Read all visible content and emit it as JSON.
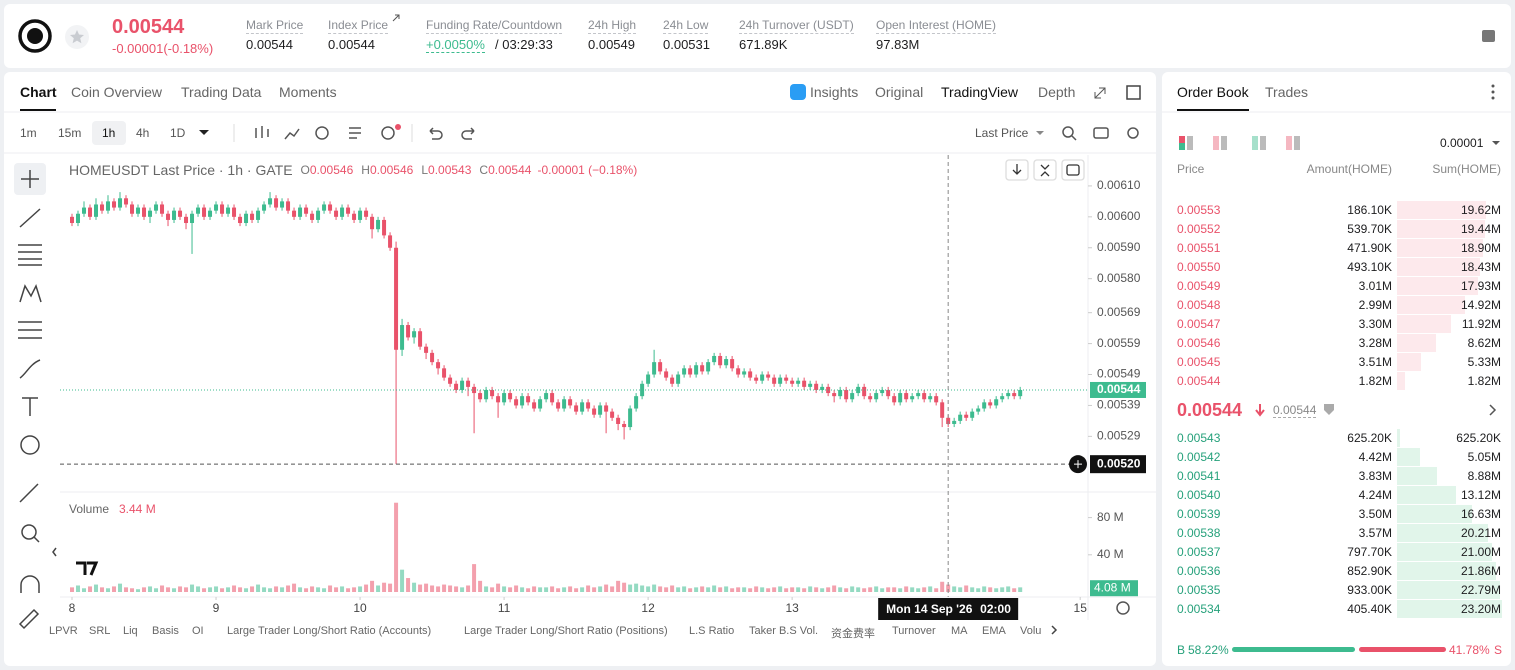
{
  "header": {
    "price": "0.00544",
    "change": "-0.00001(-0.18%)",
    "stats": [
      {
        "label": "Mark Price",
        "value": "0.00544"
      },
      {
        "label": "Index Price",
        "value": "0.00544"
      },
      {
        "label": "Funding Rate/Countdown",
        "value": "+0.0050%",
        "countdown": "/ 03:29:33"
      },
      {
        "label": "24h High",
        "value": "0.00549"
      },
      {
        "label": "24h Low",
        "value": "0.00531"
      },
      {
        "label": "24h Turnover (USDT)",
        "value": "671.89K"
      },
      {
        "label": "Open Interest (HOME)",
        "value": "97.83M"
      }
    ]
  },
  "tabs": {
    "left": [
      "Chart",
      "Coin Overview",
      "Trading Data",
      "Moments"
    ],
    "right": [
      "Insights",
      "Original",
      "TradingView",
      "Depth"
    ]
  },
  "toolbar": {
    "intervals": [
      "1m",
      "15m",
      "1h",
      "4h",
      "1D"
    ],
    "price_source": "Last Price"
  },
  "indicators": [
    "LPVR",
    "SRL",
    "Liq",
    "Basis",
    "OI",
    "Large Trader Long/Short Ratio (Accounts)",
    "Large Trader Long/Short Ratio (Positions)",
    "L.S Ratio",
    "Taker B.S Vol.",
    "资金费率",
    "Turnover",
    "MA",
    "EMA",
    "Volu"
  ],
  "chart_data": {
    "type": "candlestick",
    "symbol_line": "HOMEUSDT Last Price · 1h · GATE",
    "ohlc_legend": [
      {
        "key": "O",
        "value": "0.00546"
      },
      {
        "key": "H",
        "value": "0.00546"
      },
      {
        "key": "L",
        "value": "0.00543"
      },
      {
        "key": "C",
        "value": "0.00544"
      }
    ],
    "legend_change": "-0.00001 (−0.18%)",
    "up_color": "#3dbb8f",
    "down_color": "#e9526a",
    "xlim": [
      -2,
      169.3
    ],
    "xticks": [
      {
        "value": 0,
        "label": "8"
      },
      {
        "value": 24,
        "label": "9"
      },
      {
        "value": 48,
        "label": "10"
      },
      {
        "value": 72,
        "label": "11"
      },
      {
        "value": 96,
        "label": "12"
      },
      {
        "value": 120,
        "label": "13"
      },
      {
        "value": 168,
        "label": "15"
      }
    ],
    "ylim": [
      0.00511,
      0.0062
    ],
    "yticks": [
      {
        "value": 0.0061,
        "label": "0.00610"
      },
      {
        "value": 0.006,
        "label": "0.00600"
      },
      {
        "value": 0.0059,
        "label": "0.00590"
      },
      {
        "value": 0.0058,
        "label": "0.00580"
      },
      0.00569,
      0.00559,
      0.00549,
      0.00539,
      0.00529
    ],
    "last_price": 0.00544,
    "crosshair": {
      "x": 146,
      "price": {
        "value": 0.0052,
        "label": "0.00520"
      },
      "date_label": "Mon 14 Sep '26",
      "time_label": "02:00"
    },
    "volume_title": "Volume",
    "volume_legend": "3.44 M",
    "volume_ylim": [
      0,
      100
    ],
    "volume_yticks": [
      {
        "value": 80,
        "label": "80 M"
      },
      {
        "value": 40,
        "label": "40 M"
      }
    ],
    "volume_last": {
      "value": 4.08,
      "label": "4.08 M"
    },
    "x": [
      0,
      1,
      2,
      3,
      4,
      5,
      6,
      7,
      8,
      9,
      10,
      11,
      12,
      13,
      14,
      15,
      16,
      17,
      18,
      19,
      20,
      21,
      22,
      23,
      24,
      25,
      26,
      27,
      28,
      29,
      30,
      31,
      32,
      33,
      34,
      35,
      36,
      37,
      38,
      39,
      40,
      41,
      42,
      43,
      44,
      45,
      46,
      47,
      48,
      49,
      50,
      51,
      52,
      53,
      54,
      55,
      56,
      57,
      58,
      59,
      60,
      61,
      62,
      63,
      64,
      65,
      66,
      67,
      68,
      69,
      70,
      71,
      72,
      73,
      74,
      75,
      76,
      77,
      78,
      79,
      80,
      81,
      82,
      83,
      84,
      85,
      86,
      87,
      88,
      89,
      90,
      91,
      92,
      93,
      94,
      95,
      96,
      97,
      98,
      99,
      100,
      101,
      102,
      103,
      104,
      105,
      106,
      107,
      108,
      109,
      110,
      111,
      112,
      113,
      114,
      115,
      116,
      117,
      118,
      119,
      120,
      121,
      122,
      123,
      124,
      125,
      126,
      127,
      128,
      129,
      130,
      131,
      132,
      133,
      134,
      135,
      136,
      137,
      138,
      139,
      140,
      141,
      142,
      143,
      144,
      145,
      146,
      147,
      148,
      149,
      150,
      151,
      152,
      153,
      154,
      155,
      156,
      157,
      158
    ],
    "open": [
      0.006,
      0.00598,
      0.00601,
      0.00603,
      0.006,
      0.00604,
      0.00602,
      0.00605,
      0.00603,
      0.00606,
      0.00604,
      0.00601,
      0.00603,
      0.006,
      0.00602,
      0.00604,
      0.00601,
      0.00599,
      0.00602,
      0.006,
      0.00598,
      0.00601,
      0.00603,
      0.006,
      0.00602,
      0.00604,
      0.00601,
      0.00603,
      0.006,
      0.00598,
      0.00601,
      0.00599,
      0.00602,
      0.00604,
      0.00606,
      0.00603,
      0.00605,
      0.00602,
      0.006,
      0.00603,
      0.00601,
      0.00599,
      0.00602,
      0.00604,
      0.00602,
      0.006,
      0.00603,
      0.00601,
      0.00599,
      0.00602,
      0.006,
      0.00596,
      0.00599,
      0.00594,
      0.0059,
      0.00557,
      0.00565,
      0.00561,
      0.00563,
      0.00558,
      0.00556,
      0.00553,
      0.00551,
      0.00548,
      0.00546,
      0.00544,
      0.00547,
      0.00545,
      0.00543,
      0.00541,
      0.00544,
      0.00542,
      0.0054,
      0.00543,
      0.00541,
      0.00539,
      0.00542,
      0.0054,
      0.00538,
      0.00541,
      0.00543,
      0.0054,
      0.00538,
      0.00541,
      0.00539,
      0.00537,
      0.0054,
      0.00538,
      0.00536,
      0.00539,
      0.00537,
      0.00535,
      0.00533,
      0.00532,
      0.00538,
      0.00542,
      0.00546,
      0.00549,
      0.00553,
      0.0055,
      0.00548,
      0.00546,
      0.00549,
      0.00551,
      0.00549,
      0.00552,
      0.0055,
      0.00553,
      0.00555,
      0.00552,
      0.00554,
      0.00551,
      0.00549,
      0.0055,
      0.00548,
      0.00547,
      0.00549,
      0.00548,
      0.00546,
      0.00548,
      0.00547,
      0.00546,
      0.00547,
      0.00545,
      0.00546,
      0.00544,
      0.00545,
      0.00543,
      0.00542,
      0.00544,
      0.00541,
      0.00543,
      0.00545,
      0.00542,
      0.00541,
      0.00543,
      0.00544,
      0.00542,
      0.0054,
      0.00543,
      0.00541,
      0.00542,
      0.00543,
      0.00541,
      0.00542,
      0.0054,
      0.00535,
      0.00533,
      0.00534,
      0.00536,
      0.00535,
      0.00537,
      0.00538,
      0.0054,
      0.00539,
      0.00541,
      0.00542,
      0.00543,
      0.00542
    ],
    "high": [
      0.00601,
      0.00602,
      0.00605,
      0.00604,
      0.00606,
      0.00605,
      0.00607,
      0.00606,
      0.00608,
      0.00607,
      0.00605,
      0.00604,
      0.00604,
      0.00603,
      0.00605,
      0.00605,
      0.00602,
      0.00603,
      0.00603,
      0.00601,
      0.00602,
      0.00604,
      0.00604,
      0.00603,
      0.00605,
      0.00605,
      0.00604,
      0.00604,
      0.00601,
      0.00602,
      0.00602,
      0.00603,
      0.00605,
      0.00608,
      0.00607,
      0.00606,
      0.00606,
      0.00603,
      0.00604,
      0.00604,
      0.00602,
      0.00603,
      0.00605,
      0.00605,
      0.00603,
      0.00604,
      0.00604,
      0.00602,
      0.00603,
      0.00603,
      0.00601,
      0.006,
      0.006,
      0.00595,
      0.00592,
      0.00567,
      0.00566,
      0.00564,
      0.00564,
      0.00559,
      0.00557,
      0.00554,
      0.00552,
      0.00549,
      0.00547,
      0.00548,
      0.00548,
      0.00546,
      0.00544,
      0.00545,
      0.00545,
      0.00543,
      0.00544,
      0.00544,
      0.00542,
      0.00543,
      0.00543,
      0.00541,
      0.00542,
      0.00544,
      0.00544,
      0.00541,
      0.00542,
      0.00542,
      0.0054,
      0.00541,
      0.00541,
      0.00539,
      0.0054,
      0.0054,
      0.00538,
      0.00536,
      0.00534,
      0.00539,
      0.00543,
      0.00547,
      0.0055,
      0.00557,
      0.00554,
      0.00551,
      0.00549,
      0.0055,
      0.00552,
      0.00552,
      0.00553,
      0.00553,
      0.00554,
      0.00556,
      0.00556,
      0.00555,
      0.00555,
      0.00552,
      0.00551,
      0.00551,
      0.00549,
      0.0055,
      0.0055,
      0.00549,
      0.00549,
      0.00549,
      0.00548,
      0.00548,
      0.00548,
      0.00547,
      0.00547,
      0.00546,
      0.00546,
      0.00544,
      0.00545,
      0.00545,
      0.00544,
      0.00546,
      0.00546,
      0.00543,
      0.00544,
      0.00545,
      0.00545,
      0.00543,
      0.00544,
      0.00544,
      0.00543,
      0.00544,
      0.00544,
      0.00543,
      0.00543,
      0.00541,
      0.00536,
      0.00535,
      0.00537,
      0.00537,
      0.00538,
      0.00539,
      0.00541,
      0.00541,
      0.00542,
      0.00543,
      0.00544,
      0.00544,
      0.00545
    ],
    "low": [
      0.00597,
      0.00597,
      0.006,
      0.00599,
      0.00599,
      0.00601,
      0.00601,
      0.00602,
      0.00602,
      0.00603,
      0.006,
      0.006,
      0.00599,
      0.00598,
      0.00601,
      0.006,
      0.00597,
      0.00598,
      0.00599,
      0.00596,
      0.00588,
      0.006,
      0.00599,
      0.00599,
      0.00601,
      0.006,
      0.006,
      0.00599,
      0.00597,
      0.00597,
      0.00598,
      0.00598,
      0.00601,
      0.00603,
      0.00602,
      0.00602,
      0.00601,
      0.00599,
      0.00599,
      0.006,
      0.00598,
      0.00598,
      0.00601,
      0.00601,
      0.00599,
      0.00599,
      0.006,
      0.00598,
      0.00598,
      0.00599,
      0.00593,
      0.00595,
      0.00593,
      0.00589,
      0.0052,
      0.00555,
      0.0056,
      0.00559,
      0.00557,
      0.00554,
      0.00552,
      0.00549,
      0.00547,
      0.00545,
      0.00543,
      0.00543,
      0.00542,
      0.0053,
      0.0054,
      0.0054,
      0.00541,
      0.00535,
      0.00539,
      0.0054,
      0.00538,
      0.00538,
      0.00539,
      0.00537,
      0.00537,
      0.0054,
      0.00539,
      0.00537,
      0.00537,
      0.00538,
      0.00536,
      0.00536,
      0.00537,
      0.00535,
      0.00535,
      0.0053,
      0.00534,
      0.00531,
      0.00528,
      0.00531,
      0.00537,
      0.00541,
      0.00545,
      0.00548,
      0.00549,
      0.00547,
      0.00545,
      0.00545,
      0.00548,
      0.00548,
      0.00548,
      0.00549,
      0.00549,
      0.00552,
      0.00551,
      0.00551,
      0.0055,
      0.00548,
      0.00548,
      0.00547,
      0.00546,
      0.00546,
      0.00547,
      0.00545,
      0.00545,
      0.00546,
      0.00545,
      0.00545,
      0.00544,
      0.00544,
      0.00543,
      0.00543,
      0.00542,
      0.0054,
      0.00541,
      0.0054,
      0.0054,
      0.00542,
      0.00541,
      0.0054,
      0.0054,
      0.00542,
      0.00541,
      0.00539,
      0.00539,
      0.0054,
      0.0054,
      0.00541,
      0.0054,
      0.0054,
      0.00539,
      0.00532,
      0.00532,
      0.00532,
      0.00533,
      0.00534,
      0.00534,
      0.00536,
      0.00537,
      0.00538,
      0.00538,
      0.0054,
      0.00541,
      0.00541,
      0.00541
    ],
    "close": [
      0.00598,
      0.00601,
      0.00603,
      0.006,
      0.00604,
      0.00602,
      0.00605,
      0.00603,
      0.00606,
      0.00604,
      0.00601,
      0.00603,
      0.006,
      0.00602,
      0.00604,
      0.00601,
      0.00599,
      0.00602,
      0.006,
      0.00598,
      0.00601,
      0.00603,
      0.006,
      0.00602,
      0.00604,
      0.00601,
      0.00603,
      0.006,
      0.00598,
      0.00601,
      0.00599,
      0.00602,
      0.00604,
      0.00606,
      0.00603,
      0.00605,
      0.00602,
      0.006,
      0.00603,
      0.00601,
      0.00599,
      0.00602,
      0.00604,
      0.00602,
      0.006,
      0.00603,
      0.00601,
      0.00599,
      0.00602,
      0.006,
      0.00596,
      0.00599,
      0.00594,
      0.0059,
      0.00557,
      0.00565,
      0.00561,
      0.00563,
      0.00558,
      0.00556,
      0.00553,
      0.00551,
      0.00548,
      0.00546,
      0.00544,
      0.00547,
      0.00545,
      0.00543,
      0.00541,
      0.00544,
      0.00542,
      0.0054,
      0.00543,
      0.00541,
      0.00539,
      0.00542,
      0.0054,
      0.00538,
      0.00541,
      0.00543,
      0.0054,
      0.00538,
      0.00541,
      0.00539,
      0.00537,
      0.0054,
      0.00538,
      0.00536,
      0.00539,
      0.00537,
      0.00535,
      0.00533,
      0.00532,
      0.00538,
      0.00542,
      0.00546,
      0.00549,
      0.00553,
      0.0055,
      0.00548,
      0.00546,
      0.00549,
      0.00551,
      0.00549,
      0.00552,
      0.0055,
      0.00553,
      0.00555,
      0.00552,
      0.00554,
      0.00551,
      0.00549,
      0.0055,
      0.00548,
      0.00547,
      0.00549,
      0.00548,
      0.00546,
      0.00548,
      0.00547,
      0.00546,
      0.00547,
      0.00545,
      0.00546,
      0.00544,
      0.00545,
      0.00543,
      0.00542,
      0.00544,
      0.00541,
      0.00543,
      0.00545,
      0.00542,
      0.00541,
      0.00543,
      0.00544,
      0.00542,
      0.0054,
      0.00543,
      0.00541,
      0.00542,
      0.00543,
      0.00541,
      0.00542,
      0.0054,
      0.00535,
      0.00533,
      0.00534,
      0.00536,
      0.00535,
      0.00537,
      0.00538,
      0.0054,
      0.00539,
      0.00541,
      0.00542,
      0.00543,
      0.00542,
      0.00544
    ],
    "volume": [
      5,
      7,
      4,
      6,
      8,
      5,
      4,
      6,
      9,
      5,
      4,
      3,
      5,
      6,
      4,
      7,
      5,
      4,
      6,
      5,
      8,
      6,
      4,
      5,
      6,
      4,
      5,
      7,
      5,
      4,
      6,
      8,
      5,
      4,
      6,
      5,
      7,
      9,
      5,
      4,
      6,
      5,
      4,
      7,
      5,
      6,
      4,
      5,
      6,
      8,
      12,
      7,
      10,
      9,
      96,
      24,
      15,
      10,
      8,
      9,
      7,
      6,
      8,
      7,
      6,
      5,
      7,
      30,
      12,
      6,
      5,
      9,
      6,
      5,
      7,
      5,
      4,
      6,
      5,
      5,
      6,
      4,
      5,
      6,
      4,
      5,
      7,
      5,
      6,
      8,
      6,
      12,
      10,
      8,
      9,
      7,
      6,
      8,
      6,
      5,
      7,
      5,
      6,
      4,
      5,
      6,
      5,
      7,
      5,
      6,
      4,
      5,
      5,
      4,
      6,
      5,
      4,
      5,
      6,
      4,
      5,
      5,
      4,
      6,
      5,
      4,
      5,
      7,
      5,
      4,
      6,
      5,
      4,
      5,
      6,
      4,
      5,
      5,
      4,
      6,
      5,
      4,
      5,
      6,
      4,
      11,
      8,
      6,
      5,
      7,
      5,
      4,
      6,
      5,
      4,
      5,
      6,
      4,
      5
    ]
  },
  "order_book": {
    "tabs": [
      "Order Book",
      "Trades"
    ],
    "tick_size": "0.00001",
    "columns": [
      "Price",
      "Amount(HOME)",
      "Sum(HOME)"
    ],
    "asks": {
      "prices": [
        "0.00553",
        "0.00552",
        "0.00551",
        "0.00550",
        "0.00549",
        "0.00548",
        "0.00547",
        "0.00546",
        "0.00545",
        "0.00544"
      ],
      "amounts": [
        "186.10K",
        "539.70K",
        "471.90K",
        "493.10K",
        "3.01M",
        "2.99M",
        "3.30M",
        "3.28M",
        "3.51M",
        "1.82M"
      ],
      "sums": [
        19.62,
        19.44,
        18.9,
        18.43,
        17.93,
        14.92,
        11.92,
        8.62,
        5.33,
        1.82
      ],
      "sum_labels": [
        "19.62M",
        "19.44M",
        "18.90M",
        "18.43M",
        "17.93M",
        "14.92M",
        "11.92M",
        "8.62M",
        "5.33M",
        "1.82M"
      ]
    },
    "mid": {
      "price": "0.00544",
      "mark": "0.00544"
    },
    "bids": {
      "prices": [
        "0.00543",
        "0.00542",
        "0.00541",
        "0.00540",
        "0.00539",
        "0.00538",
        "0.00537",
        "0.00536",
        "0.00535",
        "0.00534"
      ],
      "amounts": [
        "625.20K",
        "4.42M",
        "3.83M",
        "4.24M",
        "3.50M",
        "3.57M",
        "797.70K",
        "852.90K",
        "933.00K",
        "405.40K"
      ],
      "sums": [
        0.6252,
        5.05,
        8.88,
        13.12,
        16.63,
        20.21,
        21.0,
        21.86,
        22.79,
        23.2
      ],
      "sum_labels": [
        "625.20K",
        "5.05M",
        "8.88M",
        "13.12M",
        "16.63M",
        "20.21M",
        "21.00M",
        "21.86M",
        "22.79M",
        "23.20M"
      ]
    },
    "ratio": {
      "buy_key": "B",
      "buy": 58.22,
      "buy_label": "58.22%",
      "sell": 41.78,
      "sell_label": "41.78%",
      "sell_key": "S"
    }
  }
}
